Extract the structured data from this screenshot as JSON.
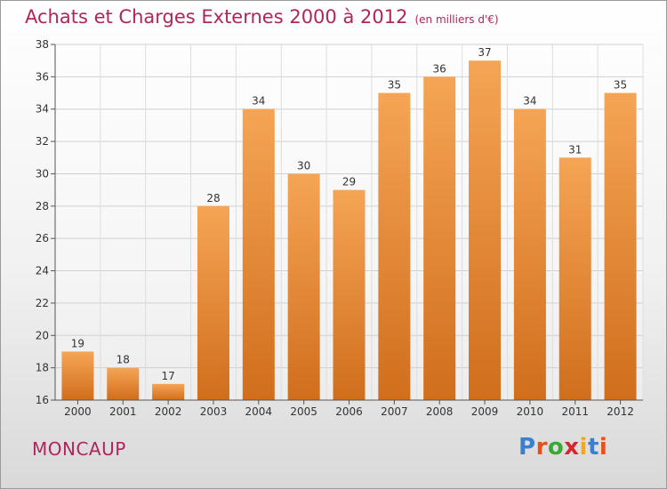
{
  "header": {
    "title": "Achats et Charges Externes 2000 à 2012",
    "unit": "(en milliers d'€)"
  },
  "footer": {
    "commune": "MONCAUP",
    "logo_letters": [
      "P",
      "r",
      "o",
      "x",
      "i",
      "t",
      "i"
    ],
    "logo_colors": [
      "#3a7fd0",
      "#e8501a",
      "#39a935",
      "#d8262d",
      "#f0a81c",
      "#3a7fd0",
      "#e8501a"
    ]
  },
  "chart_data": {
    "type": "bar",
    "title": "Achats et Charges Externes 2000 à 2012",
    "subtitle": "(en milliers d'€)",
    "categories": [
      "2000",
      "2001",
      "2002",
      "2003",
      "2004",
      "2005",
      "2006",
      "2007",
      "2008",
      "2009",
      "2010",
      "2011",
      "2012"
    ],
    "values": [
      19,
      18,
      17,
      28,
      34,
      30,
      29,
      35,
      36,
      37,
      34,
      31,
      35
    ],
    "ylim": [
      16,
      38
    ],
    "yticks": [
      16,
      18,
      20,
      22,
      24,
      26,
      28,
      30,
      32,
      34,
      36,
      38
    ],
    "grid": true,
    "legend": "none",
    "bar_color": "#f09a45",
    "bar_color_dark": "#d8721f"
  }
}
